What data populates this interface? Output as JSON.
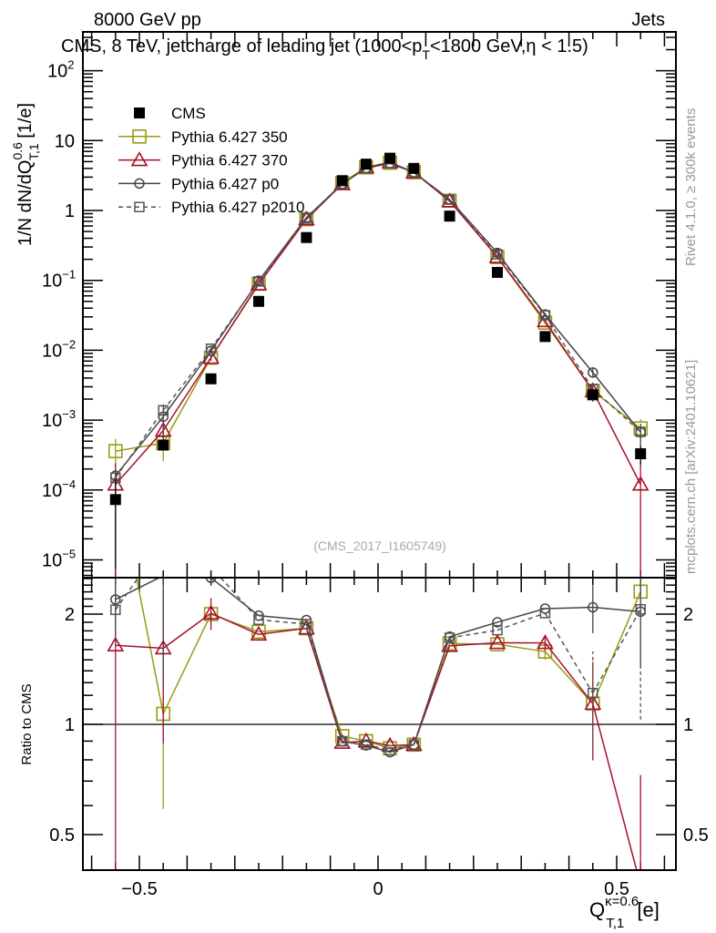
{
  "header": {
    "left": "8000 GeV pp",
    "right": "Jets"
  },
  "side_text": {
    "rivet": "Rivet 4.1.0, ≥ 300k events",
    "mcplots": "mcplots.cern.ch [arXiv:2401.10621]"
  },
  "watermark": "(CMS_2017_I1605749)",
  "chart_data": {
    "type": "scatter",
    "title": {
      "main": "CMS, 8 TeV, jetcharge of leading jet (1000<p",
      "sub": "T",
      "rest": "<1800 GeV,η < 1.5)"
    },
    "ylabel": {
      "main": "1/N dN/dQ",
      "sup": "0.6",
      "sub": "T,1",
      "unit": " [1/e]"
    },
    "xlabel": {
      "main": "Q",
      "sup": "κ=0.6",
      "sub": "T,1",
      "unit": " [e]"
    },
    "ratio_ylabel": "Ratio to CMS",
    "xlim": [
      -0.615,
      0.62
    ],
    "ylim": [
      5.9e-06,
      370
    ],
    "yscale": "log",
    "ratio_ylim": [
      0.4,
      2.5
    ],
    "xticks": [
      {
        "v": -0.5,
        "label": "−0.5"
      },
      {
        "v": 0,
        "label": "0"
      },
      {
        "v": 0.5,
        "label": "0.5"
      }
    ],
    "yticks": [
      {
        "v": 100,
        "mant": "10",
        "exp": "2"
      },
      {
        "v": 10,
        "mant": "10",
        "exp": ""
      },
      {
        "v": 1,
        "mant": "1",
        "exp": ""
      },
      {
        "v": 0.1,
        "mant": "10",
        "exp": "−1"
      },
      {
        "v": 0.01,
        "mant": "10",
        "exp": "−2"
      },
      {
        "v": 0.001,
        "mant": "10",
        "exp": "−3"
      },
      {
        "v": 0.0001,
        "mant": "10",
        "exp": "−4"
      },
      {
        "v": 1e-05,
        "mant": "10",
        "exp": "−5"
      }
    ],
    "ratio_yticks": [
      {
        "v": 2,
        "label": "2"
      },
      {
        "v": 1,
        "label": "1"
      },
      {
        "v": 0.5,
        "label": "0.5"
      }
    ],
    "x": [
      -0.55,
      -0.45,
      -0.35,
      -0.25,
      -0.15,
      -0.075,
      -0.025,
      0.025,
      0.075,
      0.15,
      0.25,
      0.35,
      0.45,
      0.55
    ],
    "data": {
      "name": "CMS",
      "values": [
        7.3e-05,
        0.00044,
        0.0039,
        0.05,
        0.41,
        2.67,
        4.6,
        5.6,
        4.0,
        0.83,
        0.13,
        0.0157,
        0.0023,
        0.00033
      ],
      "rel_err": [
        0.9,
        0.15,
        0.04,
        0.03,
        0.02,
        0.02,
        0.02,
        0.02,
        0.02,
        0.02,
        0.03,
        0.04,
        0.08,
        0.3
      ]
    },
    "series": [
      {
        "name": "Pythia 6.427 350",
        "color": "#9a9a14",
        "marker": "square-open",
        "dash": false,
        "values": [
          0.00036,
          0.00047,
          0.0078,
          0.0895,
          0.75,
          2.48,
          4.14,
          4.82,
          3.52,
          1.38,
          0.215,
          0.0248,
          0.00262,
          0.00076
        ],
        "rel_err": [
          0.5,
          0.45,
          0.05,
          0.02,
          0.01,
          0.01,
          0.01,
          0.01,
          0.01,
          0.01,
          0.02,
          0.05,
          0.1,
          0.1
        ]
      },
      {
        "name": "Pythia 6.427 370",
        "color": "#a8102a",
        "marker": "triangle-open",
        "dash": false,
        "values": [
          0.00012,
          0.00071,
          0.00784,
          0.088,
          0.75,
          2.38,
          4.14,
          4.9,
          3.52,
          1.36,
          0.217,
          0.0262,
          0.00262,
          0.00012
        ],
        "rel_err": [
          1.0,
          0.45,
          0.1,
          0.03,
          0.01,
          0.01,
          0.01,
          0.01,
          0.01,
          0.01,
          0.02,
          0.05,
          0.3,
          1.0
        ]
      },
      {
        "name": "Pythia 6.427 p0",
        "color": "#444444",
        "marker": "circle-open",
        "dash": false,
        "values": [
          0.00016,
          0.00112,
          0.0098,
          0.099,
          0.79,
          2.4,
          4.03,
          4.7,
          3.52,
          1.44,
          0.247,
          0.0325,
          0.0048,
          0.00067
        ],
        "rel_err": [
          0.2,
          0.5,
          0.05,
          0.02,
          0.01,
          0.01,
          0.01,
          0.01,
          0.01,
          0.01,
          0.02,
          0.03,
          0.15,
          0.3
        ]
      },
      {
        "name": "Pythia 6.427 p2010",
        "color": "#555555",
        "marker": "square-small",
        "dash": true,
        "values": [
          0.00015,
          0.00138,
          0.0105,
          0.0965,
          0.77,
          2.4,
          4.05,
          4.76,
          3.52,
          1.43,
          0.235,
          0.0316,
          0.0028,
          0.00068
        ],
        "rel_err": [
          0.2,
          0.15,
          0.05,
          0.02,
          0.01,
          0.01,
          0.01,
          0.01,
          0.01,
          0.01,
          0.02,
          0.03,
          0.3,
          0.5
        ]
      }
    ],
    "legend_placement": "top-left"
  }
}
